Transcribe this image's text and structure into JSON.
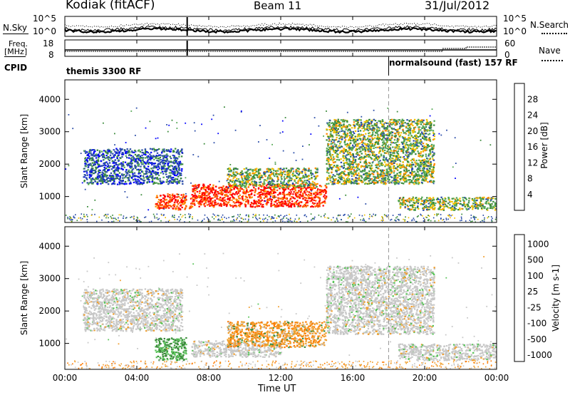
{
  "header": {
    "station": "Kodiak (fitACF)",
    "beam": "Beam 11",
    "date": "31/Jul/2012"
  },
  "noise_panel": {
    "left_label": "N.Sky",
    "left_ticks": [
      "10^5",
      "10^0"
    ],
    "right_ticks": [
      "10^5",
      "10^0"
    ],
    "right_label": "N.Search",
    "right_legend_line": "dotted"
  },
  "freq_panel": {
    "left_label_line1": "Freq.",
    "left_label_line2": "[MHz]",
    "left_ticks": [
      "18",
      "8"
    ],
    "right_ticks": [
      "60",
      "0"
    ],
    "right_label": "Nave",
    "right_legend_line": "dotted"
  },
  "cpid_panel": {
    "label": "CPID",
    "segments": [
      {
        "text": "themis 3300 RF",
        "start": "00:00"
      },
      {
        "text": "normalsound (fast) 157 RF",
        "start": "18:00"
      }
    ]
  },
  "time_axis": {
    "ticks": [
      "00:00",
      "04:00",
      "08:00",
      "12:00",
      "16:00",
      "20:00",
      "00:00"
    ],
    "label": "Time UT",
    "range_hours": [
      0,
      24
    ],
    "gap_hour": 6.8,
    "mode_change_hour": 18
  },
  "chart_data": [
    {
      "type": "heatmap",
      "name": "power",
      "ylabel": "Slant Range [km]",
      "yticks": [
        1000,
        2000,
        3000,
        4000
      ],
      "ylim": [
        200,
        4600
      ],
      "colorbar": {
        "label": "Power [dB]",
        "ticks": [
          "4",
          "8",
          "12",
          "16",
          "20",
          "24",
          "28"
        ],
        "range": [
          0,
          32
        ]
      },
      "colors": [
        "#0000ff",
        "#2b4da8",
        "#3a8a3a",
        "#55a855",
        "#f2c200",
        "#ff8800",
        "#ff5a00",
        "#ff0000"
      ],
      "echo_regions": [
        {
          "t": [
            1.0,
            6.5
          ],
          "range": [
            1400,
            2500
          ],
          "level": "low"
        },
        {
          "t": [
            5.0,
            7.0
          ],
          "range": [
            600,
            1100
          ],
          "level": "high"
        },
        {
          "t": [
            7.0,
            14.5
          ],
          "range": [
            700,
            1400
          ],
          "level": "high"
        },
        {
          "t": [
            9.0,
            14.0
          ],
          "range": [
            1300,
            1900
          ],
          "level": "mid"
        },
        {
          "t": [
            14.5,
            20.5
          ],
          "range": [
            1400,
            3400
          ],
          "level": "mid"
        },
        {
          "t": [
            18.5,
            24.0
          ],
          "range": [
            600,
            1000
          ],
          "level": "mid"
        }
      ]
    },
    {
      "type": "heatmap",
      "name": "velocity",
      "ylabel": "Slant Range [km]",
      "yticks": [
        1000,
        2000,
        3000,
        4000
      ],
      "ylim": [
        200,
        4600
      ],
      "colorbar": {
        "label": "Velocity [m s-1]",
        "ticks": [
          "1000",
          "500",
          "100",
          "25",
          "-25",
          "-100",
          "-500",
          "-1000"
        ]
      },
      "colors": [
        "#2233aa",
        "#3d8c3d",
        "#5ac45a",
        "#c8c8c8",
        "#c8c8c8",
        "#f0a030",
        "#ff7a00",
        "#ff0000"
      ],
      "echo_regions": [
        {
          "t": [
            1.0,
            6.5
          ],
          "range": [
            1400,
            2700
          ],
          "class": "ground"
        },
        {
          "t": [
            5.0,
            6.8
          ],
          "range": [
            500,
            1200
          ],
          "class": "positive"
        },
        {
          "t": [
            7.0,
            12.0
          ],
          "range": [
            600,
            1100
          ],
          "class": "ground"
        },
        {
          "t": [
            9.0,
            14.5
          ],
          "range": [
            900,
            1700
          ],
          "class": "negative"
        },
        {
          "t": [
            14.5,
            20.5
          ],
          "range": [
            1300,
            3400
          ],
          "class": "ground"
        },
        {
          "t": [
            18.5,
            24.0
          ],
          "range": [
            500,
            1000
          ],
          "class": "ground"
        }
      ]
    }
  ]
}
